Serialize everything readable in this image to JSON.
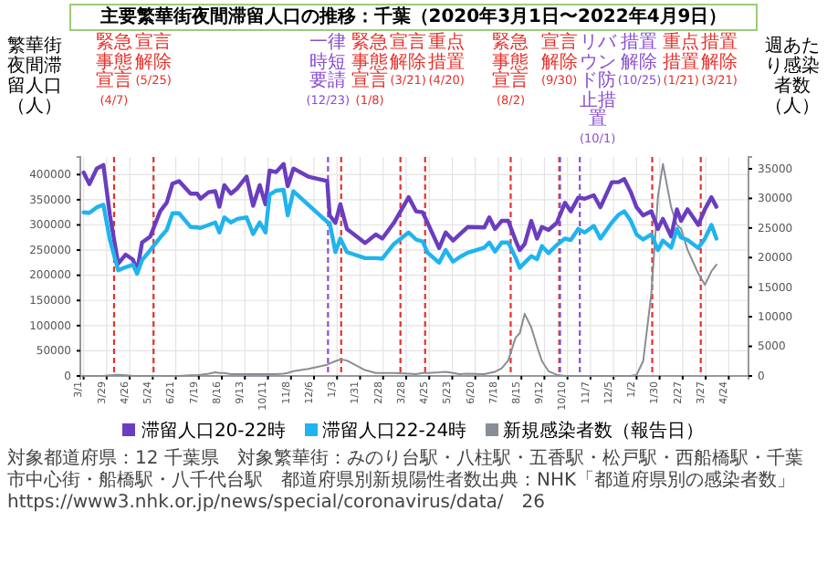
{
  "chart_data": {
    "type": "line",
    "title": "主要繁華街夜間滞留人口の推移：千葉（2020年3月1日〜2022年4月9日）",
    "ylabel": "繁華街夜間滞留人口（人）",
    "y2label": "週あたり感染者数（人）",
    "x": [
      "2020-03-01",
      "2020-03-08",
      "2020-03-17",
      "2020-03-25",
      "2020-04-02",
      "2020-04-12",
      "2020-04-21",
      "2020-04-30",
      "2020-05-05",
      "2020-05-11",
      "2020-05-21",
      "2020-06-02",
      "2020-06-10",
      "2020-06-17",
      "2020-06-25",
      "2020-07-09",
      "2020-07-17",
      "2020-07-21",
      "2020-07-31",
      "2020-08-08",
      "2020-08-13",
      "2020-08-19",
      "2020-08-27",
      "2020-09-04",
      "2020-09-15",
      "2020-09-23",
      "2020-10-01",
      "2020-10-08",
      "2020-10-13",
      "2020-10-21",
      "2020-10-30",
      "2020-11-04",
      "2020-11-11",
      "2020-11-29",
      "2020-12-22",
      "2020-12-25",
      "2021-01-01",
      "2021-01-07",
      "2021-01-15",
      "2021-02-06",
      "2021-02-19",
      "2021-02-27",
      "2021-03-13",
      "2021-03-31",
      "2021-04-09",
      "2021-04-17",
      "2021-04-23",
      "2021-05-07",
      "2021-05-15",
      "2021-05-24",
      "2021-06-01",
      "2021-06-11",
      "2021-07-01",
      "2021-07-07",
      "2021-07-14",
      "2021-07-22",
      "2021-07-30",
      "2021-08-08",
      "2021-08-13",
      "2021-08-19",
      "2021-08-27",
      "2021-09-03",
      "2021-09-09",
      "2021-09-17",
      "2021-09-27",
      "2021-10-07",
      "2021-10-14",
      "2021-10-23",
      "2021-10-31",
      "2021-11-11",
      "2021-11-19",
      "2021-12-03",
      "2021-12-11",
      "2021-12-18",
      "2021-12-26",
      "2022-01-02",
      "2022-01-10",
      "2022-01-20",
      "2022-01-28",
      "2022-02-03",
      "2022-02-13",
      "2022-02-20",
      "2022-02-25",
      "2022-03-05",
      "2022-03-18",
      "2022-03-26",
      "2022-04-03",
      "2022-04-09"
    ],
    "series": [
      {
        "name": "新規感染者数（報告日）",
        "color": "#888e96",
        "axis": "y2",
        "values": [
          0,
          0,
          0,
          0,
          100,
          200,
          100,
          0,
          0,
          0,
          0,
          0,
          0,
          0,
          0,
          100,
          100,
          200,
          400,
          600,
          500,
          500,
          300,
          300,
          300,
          300,
          300,
          300,
          300,
          300,
          400,
          500,
          800,
          1200,
          1900,
          2100,
          2500,
          2800,
          2600,
          1000,
          500,
          500,
          500,
          400,
          300,
          500,
          500,
          600,
          700,
          500,
          300,
          400,
          300,
          500,
          700,
          1300,
          2600,
          6500,
          7200,
          10500,
          8200,
          5000,
          2500,
          800,
          200,
          0,
          0,
          0,
          0,
          0,
          0,
          0,
          0,
          0,
          0,
          200,
          2500,
          14000,
          30400,
          35800,
          28500,
          25500,
          24900,
          21300,
          17300,
          15400,
          17700,
          18800
        ]
      },
      {
        "name": "滞留人口20-22時",
        "color": "#6a3dc0",
        "values": [
          404000,
          381000,
          412000,
          419000,
          319000,
          223000,
          241000,
          231000,
          208000,
          265000,
          277000,
          327000,
          344000,
          382000,
          387000,
          362000,
          362000,
          352000,
          365000,
          367000,
          336000,
          379000,
          362000,
          373000,
          396000,
          338000,
          379000,
          341000,
          408000,
          405000,
          421000,
          377000,
          412000,
          396000,
          387000,
          319000,
          304000,
          341000,
          292000,
          264000,
          281000,
          273000,
          304000,
          355000,
          327000,
          325000,
          304000,
          254000,
          285000,
          269000,
          281000,
          296000,
          295000,
          315000,
          292000,
          308000,
          308000,
          269000,
          250000,
          262000,
          308000,
          273000,
          296000,
          290000,
          304000,
          344000,
          327000,
          354000,
          352000,
          359000,
          335000,
          385000,
          385000,
          391000,
          365000,
          335000,
          319000,
          327000,
          292000,
          312000,
          277000,
          331000,
          308000,
          331000,
          300000,
          331000,
          355000,
          336000
        ]
      },
      {
        "name": "滞留人口22-24時",
        "color": "#1fb4ee",
        "values": [
          325000,
          324000,
          335000,
          340000,
          270000,
          210000,
          216000,
          221000,
          203000,
          230000,
          250000,
          275000,
          290000,
          323000,
          323000,
          296000,
          295000,
          294000,
          300000,
          305000,
          285000,
          315000,
          305000,
          312000,
          315000,
          282000,
          305000,
          285000,
          360000,
          368000,
          370000,
          319000,
          367000,
          340000,
          306000,
          304000,
          246000,
          273000,
          246000,
          234000,
          234000,
          233000,
          262000,
          285000,
          271000,
          267000,
          245000,
          225000,
          250000,
          227000,
          236000,
          245000,
          255000,
          265000,
          247000,
          265000,
          265000,
          235000,
          215000,
          225000,
          238000,
          232000,
          258000,
          244000,
          260000,
          273000,
          270000,
          292000,
          285000,
          298000,
          273000,
          305000,
          320000,
          327000,
          308000,
          281000,
          271000,
          281000,
          250000,
          269000,
          255000,
          292000,
          275000,
          270000,
          254000,
          273000,
          300000,
          273000
        ]
      }
    ],
    "xlim": [
      "2020-02-26",
      "2022-05-18"
    ],
    "xticks": [
      {
        "value": "2020-03-01",
        "label": "3/1"
      },
      {
        "value": "2020-03-29",
        "label": "3/29"
      },
      {
        "value": "2020-04-26",
        "label": "4/26"
      },
      {
        "value": "2020-05-24",
        "label": "5/24"
      },
      {
        "value": "2020-06-21",
        "label": "6/21"
      },
      {
        "value": "2020-07-19",
        "label": "7/19"
      },
      {
        "value": "2020-08-16",
        "label": "8/16"
      },
      {
        "value": "2020-09-13",
        "label": "9/13"
      },
      {
        "value": "2020-10-11",
        "label": "10/11"
      },
      {
        "value": "2020-11-08",
        "label": "11/8"
      },
      {
        "value": "2020-12-06",
        "label": "12/6"
      },
      {
        "value": "2021-01-03",
        "label": "1/3"
      },
      {
        "value": "2021-01-31",
        "label": "1/31"
      },
      {
        "value": "2021-02-28",
        "label": "2/28"
      },
      {
        "value": "2021-03-28",
        "label": "3/28"
      },
      {
        "value": "2021-04-25",
        "label": "4/25"
      },
      {
        "value": "2021-05-23",
        "label": "5/23"
      },
      {
        "value": "2021-06-20",
        "label": "6/20"
      },
      {
        "value": "2021-07-18",
        "label": "7/18"
      },
      {
        "value": "2021-08-15",
        "label": "8/15"
      },
      {
        "value": "2021-09-12",
        "label": "9/12"
      },
      {
        "value": "2021-10-10",
        "label": "10/10"
      },
      {
        "value": "2021-11-07",
        "label": "11/7"
      },
      {
        "value": "2021-12-05",
        "label": "12/5"
      },
      {
        "value": "2022-01-02",
        "label": "1/2"
      },
      {
        "value": "2022-01-30",
        "label": "1/30"
      },
      {
        "value": "2022-02-27",
        "label": "2/27"
      },
      {
        "value": "2022-03-27",
        "label": "3/27"
      },
      {
        "value": "2022-04-24",
        "label": "4/24"
      }
    ],
    "ylim": [
      0,
      435000
    ],
    "yticks": [
      0,
      50000,
      100000,
      150000,
      200000,
      250000,
      300000,
      350000,
      400000
    ],
    "y2lim": [
      0,
      37000
    ],
    "y2ticks": [
      0,
      5000,
      10000,
      15000,
      20000,
      25000,
      30000,
      35000
    ],
    "grid": true,
    "legend": "bottom",
    "ref_lines": [
      {
        "axis": "x",
        "value": "2020-04-07",
        "label": "緊急事態宣言(4/7)",
        "color": "#e8302a",
        "line_style": "dashed"
      },
      {
        "axis": "x",
        "value": "2020-05-25",
        "label": "宣言解除(5/25)",
        "color": "#e8302a",
        "line_style": "dashed"
      },
      {
        "axis": "x",
        "value": "2020-12-23",
        "label": "一律時短要請(12/23)",
        "color": "#8a4fd0",
        "line_style": "dashed"
      },
      {
        "axis": "x",
        "value": "2021-01-08",
        "label": "緊急事態宣言(1/8)",
        "color": "#e8302a",
        "line_style": "dashed"
      },
      {
        "axis": "x",
        "value": "2021-03-21",
        "label": "宣言解除(3/21)",
        "color": "#e8302a",
        "line_style": "dashed"
      },
      {
        "axis": "x",
        "value": "2021-04-20",
        "label": "重点措置(4/20)",
        "color": "#e8302a",
        "line_style": "dashed"
      },
      {
        "axis": "x",
        "value": "2021-08-02",
        "label": "緊急事態宣言(8/2)",
        "color": "#e8302a",
        "line_style": "dashed"
      },
      {
        "axis": "x",
        "value": "2021-09-30",
        "label": "宣言解除(9/30)",
        "color": "#e8302a",
        "line_style": "dashed"
      },
      {
        "axis": "x",
        "value": "2021-10-01",
        "label": "リバウンド防止措置(10/1)",
        "color": "#8a4fd0",
        "line_style": "dashed"
      },
      {
        "axis": "x",
        "value": "2021-10-25",
        "label": "措置解除(10/25)",
        "color": "#8a4fd0",
        "line_style": "dashed"
      },
      {
        "axis": "x",
        "value": "2022-01-21",
        "label": "重点措置(1/21)",
        "color": "#e8302a",
        "line_style": "dashed"
      },
      {
        "axis": "x",
        "value": "2022-03-21",
        "label": "措置解除(3/21)",
        "color": "#e8302a",
        "line_style": "dashed"
      }
    ],
    "annotations": [
      "対象都道府県：12 千葉県",
      "対象繁華街：みのり台駅・八柱駅・五香駅・松戸駅・西船橋駅・千葉市中心街・船橋駅・八千代台駅",
      "都道府県別新規陽性者数出典：NHK「都道府県別の感染者数」https://www3.nhk.or.jp/news/special/coronavirus/data/",
      "26"
    ]
  }
}
